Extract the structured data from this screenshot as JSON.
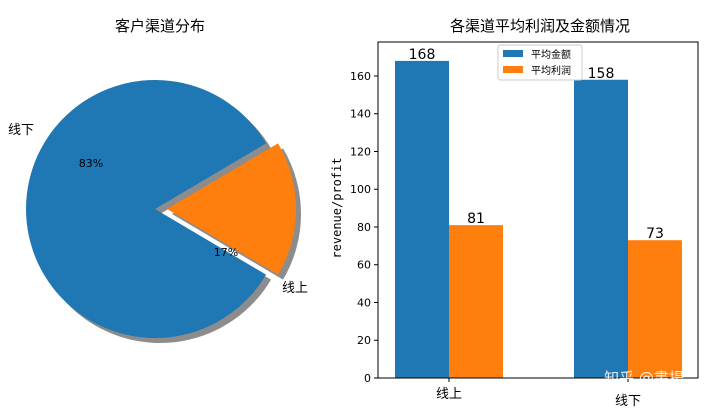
{
  "colors": {
    "blue": "#1f77b4",
    "orange": "#ff7f0e",
    "shadow": "#8c8c8c"
  },
  "watermark": "知乎 @書揚",
  "chart_data": [
    {
      "type": "pie",
      "title": "客户渠道分布",
      "labels": [
        "线下",
        "线上"
      ],
      "values": [
        83,
        17
      ],
      "pct_labels": [
        "83%",
        "17%"
      ],
      "exploded": "线上",
      "shadow": true
    },
    {
      "type": "bar",
      "title": "各渠道平均利润及金额情况",
      "categories": [
        "线上",
        "线下"
      ],
      "series": [
        {
          "name": "平均金额",
          "values": [
            168,
            158
          ],
          "labels": [
            "168",
            "158"
          ]
        },
        {
          "name": "平均利润",
          "values": [
            81,
            73
          ],
          "labels": [
            "81",
            "73"
          ]
        }
      ],
      "xlabel": "",
      "ylabel": "revenue/profit",
      "ylim": [
        0,
        178
      ],
      "yticks": [
        0,
        20,
        40,
        60,
        80,
        100,
        120,
        140,
        160
      ],
      "grid": false,
      "legend": "top-center"
    }
  ]
}
